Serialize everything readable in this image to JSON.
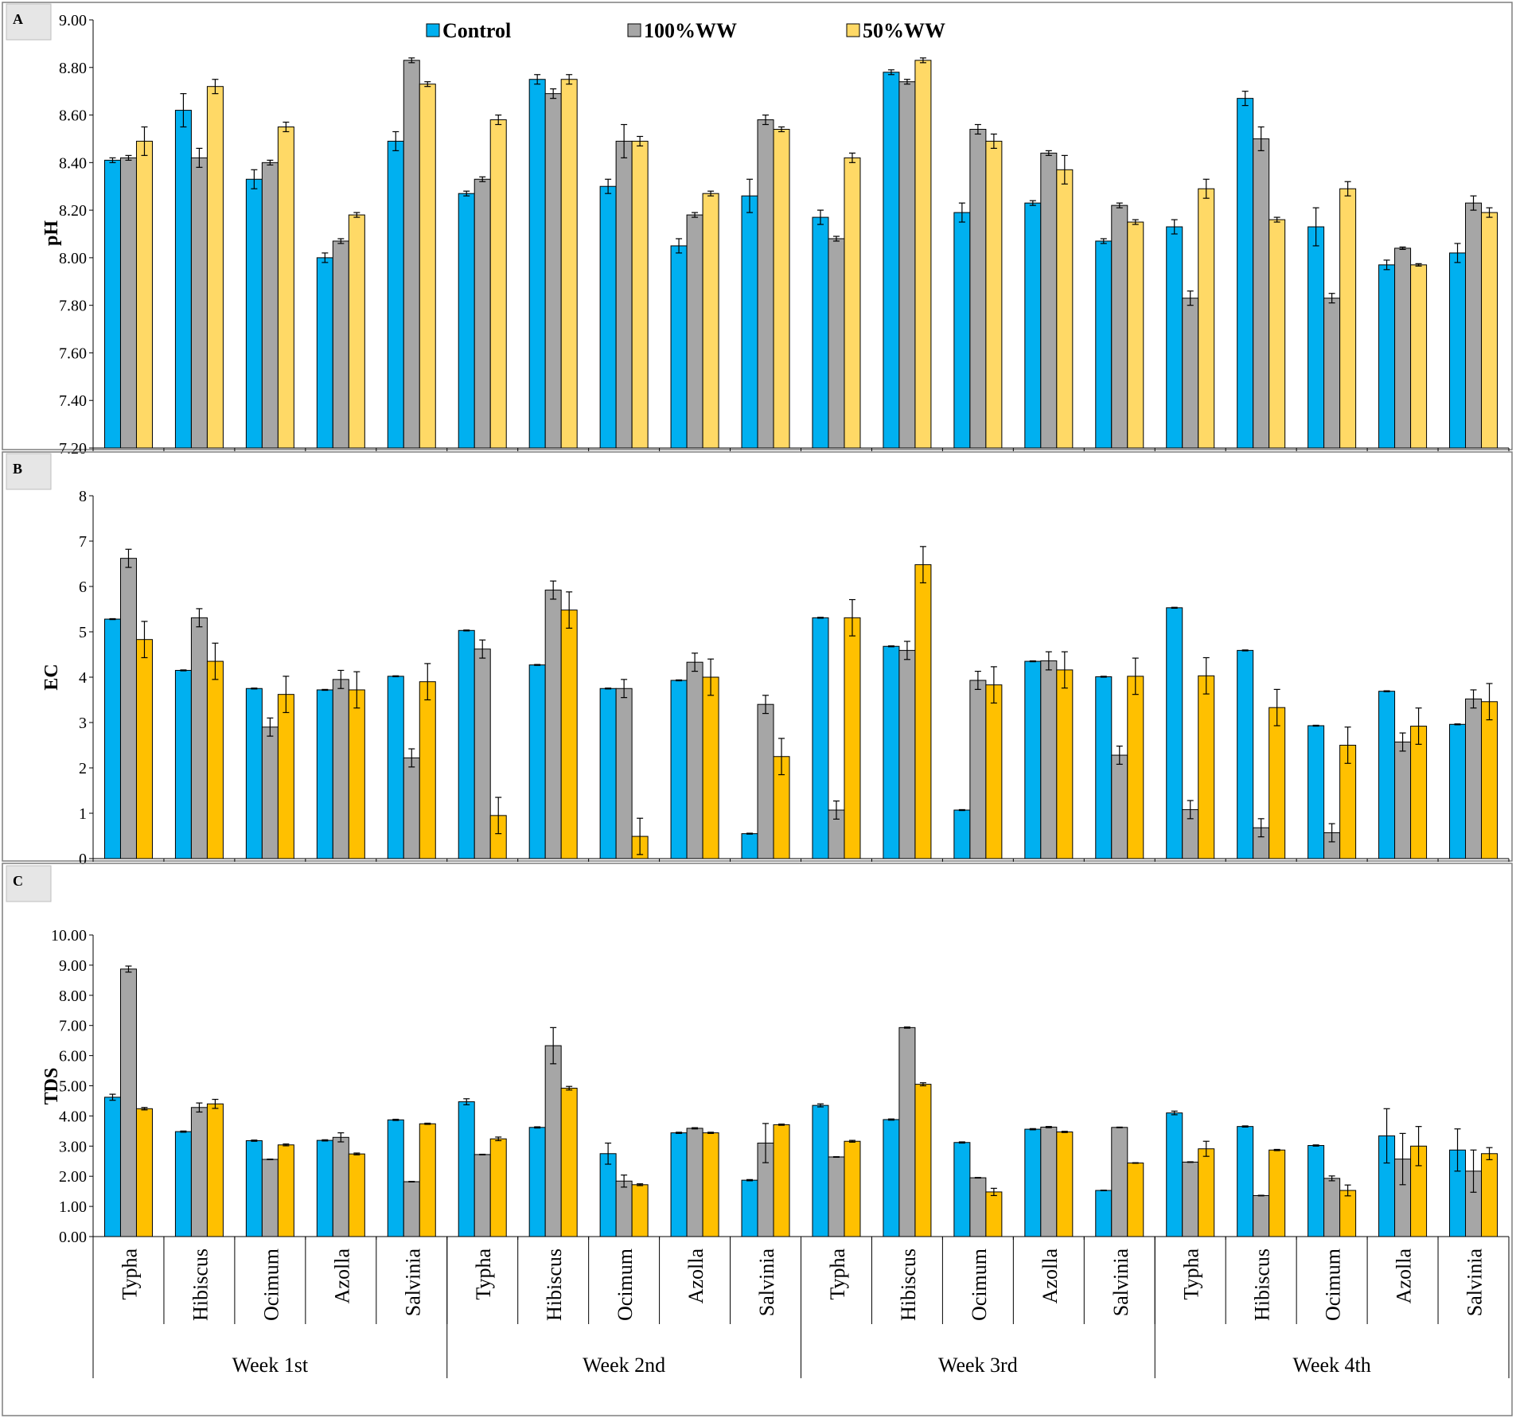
{
  "colors": {
    "control": "#00B0F0",
    "ww100": "#A6A6A6",
    "ww50": "#FFC000"
  },
  "legend": [
    {
      "key": "control",
      "label": "Control"
    },
    {
      "key": "ww100",
      "label": "100%WW"
    },
    {
      "key": "ww50",
      "label": "50%WW"
    }
  ],
  "x_axis": {
    "categories": [
      "Typha",
      "Hibiscus",
      "Ocimum",
      "Azolla",
      "Salvinia",
      "Typha",
      "Hibiscus",
      "Ocimum",
      "Azolla",
      "Salvinia",
      "Typha",
      "Hibiscus",
      "Ocimum",
      "Azolla",
      "Salvinia",
      "Typha",
      "Hibiscus",
      "Ocimum",
      "Azolla",
      "Salvinia"
    ],
    "groups": [
      "Week 1st",
      "Week 2nd",
      "Week 3rd",
      "Week 4th"
    ]
  },
  "chart_data": [
    {
      "type": "bar",
      "panel_label": "A",
      "ylabel": "pH",
      "ylim": [
        7.2,
        9.0
      ],
      "yticks": [
        "7.20",
        "7.40",
        "7.60",
        "7.80",
        "8.00",
        "8.20",
        "8.40",
        "8.60",
        "8.80",
        "9.00"
      ],
      "series": [
        {
          "name": "Control",
          "values": [
            8.41,
            8.62,
            8.33,
            8.0,
            8.49,
            8.27,
            8.75,
            8.3,
            8.05,
            8.26,
            8.17,
            8.78,
            8.19,
            8.23,
            8.07,
            8.13,
            8.67,
            8.13,
            7.97,
            8.02
          ],
          "errors": [
            0.01,
            0.07,
            0.04,
            0.02,
            0.04,
            0.01,
            0.02,
            0.03,
            0.03,
            0.07,
            0.03,
            0.01,
            0.04,
            0.01,
            0.01,
            0.03,
            0.03,
            0.08,
            0.02,
            0.04
          ]
        },
        {
          "name": "100%WW",
          "values": [
            8.42,
            8.42,
            8.4,
            8.07,
            8.83,
            8.33,
            8.69,
            8.49,
            8.18,
            8.58,
            8.08,
            8.74,
            8.54,
            8.44,
            8.22,
            7.83,
            8.5,
            7.83,
            8.04,
            8.23
          ],
          "errors": [
            0.01,
            0.04,
            0.01,
            0.01,
            0.01,
            0.01,
            0.02,
            0.07,
            0.01,
            0.02,
            0.01,
            0.01,
            0.02,
            0.01,
            0.01,
            0.03,
            0.05,
            0.02,
            0.005,
            0.03
          ]
        },
        {
          "name": "50%WW",
          "values": [
            8.49,
            8.72,
            8.55,
            8.18,
            8.73,
            8.58,
            8.75,
            8.49,
            8.27,
            8.54,
            8.42,
            8.83,
            8.49,
            8.37,
            8.15,
            8.29,
            8.16,
            8.29,
            7.97,
            8.19
          ],
          "errors": [
            0.06,
            0.03,
            0.02,
            0.01,
            0.01,
            0.02,
            0.02,
            0.02,
            0.01,
            0.01,
            0.02,
            0.01,
            0.03,
            0.06,
            0.01,
            0.04,
            0.01,
            0.03,
            0.005,
            0.02
          ]
        }
      ]
    },
    {
      "type": "bar",
      "panel_label": "B",
      "ylabel": "EC",
      "ylim": [
        0,
        8
      ],
      "yticks": [
        "0",
        "1",
        "2",
        "3",
        "4",
        "5",
        "6",
        "7",
        "8"
      ],
      "series": [
        {
          "name": "Control",
          "values": [
            5.28,
            4.15,
            3.75,
            3.72,
            4.02,
            5.03,
            4.27,
            3.75,
            3.93,
            0.55,
            5.31,
            4.68,
            1.07,
            4.35,
            4.01,
            5.53,
            4.59,
            2.93,
            3.69,
            2.96
          ],
          "errors": [
            0.01,
            0.01,
            0.01,
            0.01,
            0.01,
            0.01,
            0.01,
            0.01,
            0.01,
            0.01,
            0.01,
            0.01,
            0.01,
            0.01,
            0.01,
            0.01,
            0.01,
            0.01,
            0.01,
            0.01
          ]
        },
        {
          "name": "100%WW",
          "values": [
            6.62,
            5.31,
            2.9,
            3.95,
            2.22,
            4.62,
            5.92,
            3.75,
            4.33,
            3.4,
            1.07,
            4.59,
            3.93,
            4.36,
            2.28,
            1.08,
            0.68,
            0.57,
            2.57,
            3.52
          ],
          "errors": [
            0.2,
            0.2,
            0.2,
            0.2,
            0.2,
            0.2,
            0.2,
            0.2,
            0.2,
            0.2,
            0.2,
            0.2,
            0.2,
            0.2,
            0.2,
            0.2,
            0.2,
            0.2,
            0.2,
            0.2
          ]
        },
        {
          "name": "50%WW",
          "values": [
            4.83,
            4.35,
            3.62,
            3.72,
            3.9,
            0.95,
            5.48,
            0.49,
            4.0,
            2.25,
            5.31,
            6.48,
            3.83,
            4.16,
            4.02,
            4.03,
            3.33,
            2.5,
            2.92,
            3.46
          ],
          "errors": [
            0.4,
            0.4,
            0.4,
            0.4,
            0.4,
            0.4,
            0.4,
            0.4,
            0.4,
            0.4,
            0.4,
            0.4,
            0.4,
            0.4,
            0.4,
            0.4,
            0.4,
            0.4,
            0.4,
            0.4
          ]
        }
      ]
    },
    {
      "type": "bar",
      "panel_label": "C",
      "ylabel": "TDS",
      "ylim": [
        0,
        10
      ],
      "yticks": [
        "0.00",
        "1.00",
        "2.00",
        "3.00",
        "4.00",
        "5.00",
        "6.00",
        "7.00",
        "8.00",
        "9.00",
        "10.00"
      ],
      "series": [
        {
          "name": "Control",
          "values": [
            4.62,
            3.48,
            3.18,
            3.19,
            3.87,
            4.47,
            3.62,
            2.75,
            3.44,
            1.87,
            4.35,
            3.88,
            3.12,
            3.56,
            1.53,
            4.1,
            3.65,
            3.02,
            3.34,
            2.87
          ],
          "errors": [
            0.1,
            0.02,
            0.02,
            0.02,
            0.02,
            0.1,
            0.02,
            0.35,
            0.02,
            0.02,
            0.05,
            0.02,
            0.02,
            0.02,
            0.01,
            0.06,
            0.02,
            0.02,
            0.9,
            0.7
          ]
        },
        {
          "name": "100%WW",
          "values": [
            8.87,
            4.28,
            2.56,
            3.29,
            1.82,
            2.72,
            6.33,
            1.84,
            3.59,
            3.1,
            2.64,
            6.93,
            1.95,
            3.63,
            3.62,
            2.47,
            1.36,
            1.93,
            2.57,
            2.17
          ],
          "errors": [
            0.1,
            0.15,
            0.01,
            0.15,
            0.01,
            0.01,
            0.6,
            0.2,
            0.02,
            0.65,
            0.01,
            0.02,
            0.01,
            0.02,
            0.01,
            0.01,
            0.01,
            0.08,
            0.85,
            0.7
          ]
        },
        {
          "name": "50%WW",
          "values": [
            4.24,
            4.4,
            3.04,
            2.74,
            3.74,
            3.24,
            4.92,
            1.72,
            3.44,
            3.71,
            3.16,
            5.05,
            1.48,
            3.47,
            2.44,
            2.91,
            2.87,
            1.53,
            3.0,
            2.75
          ],
          "errors": [
            0.04,
            0.15,
            0.03,
            0.03,
            0.02,
            0.06,
            0.06,
            0.03,
            0.02,
            0.02,
            0.03,
            0.05,
            0.12,
            0.02,
            0.01,
            0.25,
            0.02,
            0.18,
            0.65,
            0.2
          ]
        }
      ]
    }
  ]
}
